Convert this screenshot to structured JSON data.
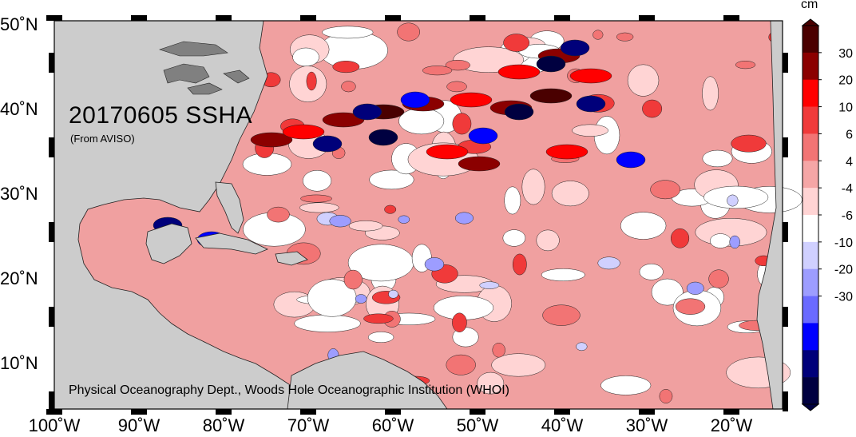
{
  "map": {
    "title": "20170605 SSHA",
    "subtitle": "(From AVISO)",
    "credit": "Physical Oceanography Dept., Woods Hole Oceanographic Institution (WHOI)",
    "lat_labels": [
      "50˚N",
      "40˚N",
      "30˚N",
      "20˚N",
      "10˚N"
    ],
    "lon_labels": [
      "100˚W",
      "90˚W",
      "80˚W",
      "70˚W",
      "60˚W",
      "50˚W",
      "40˚W",
      "30˚W",
      "20˚W"
    ],
    "land_color": "#cccccc",
    "lake_color": "#808080"
  },
  "colorbar": {
    "unit": "cm",
    "tick_labels": [
      "30",
      "20",
      "10",
      "6",
      "4",
      "-4",
      "-6",
      "-10",
      "-20",
      "-30"
    ],
    "colors": [
      "#4a0000",
      "#8b0000",
      "#ff0000",
      "#f03a3a",
      "#f27474",
      "#f5a6a6",
      "#ffd4d4",
      "#ffffff",
      "#d0d0ff",
      "#9d9dff",
      "#6a6aff",
      "#0000ff",
      "#00007a",
      "#000040"
    ]
  }
}
